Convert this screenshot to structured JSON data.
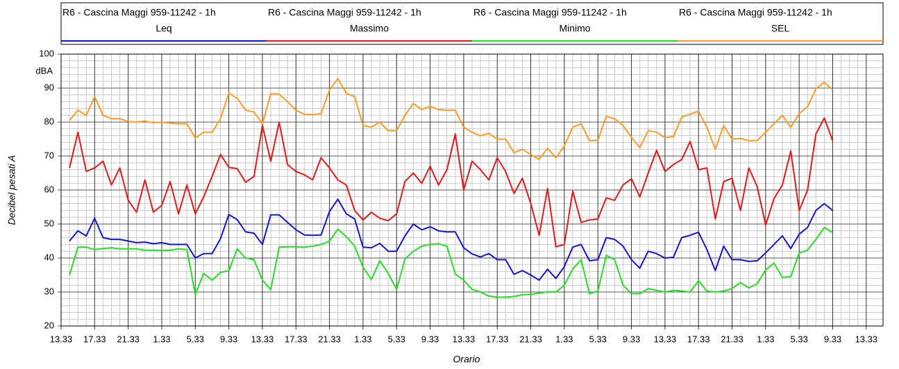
{
  "chart_data": {
    "type": "line",
    "x_label": "Orario",
    "y_label": "Decibel pesati A",
    "y_unit": "dBA",
    "xlim": [
      0,
      98
    ],
    "ylim": [
      20,
      100
    ],
    "yticks": [
      20,
      30,
      40,
      50,
      60,
      70,
      80,
      90,
      100
    ],
    "xticks": [
      {
        "value": 0,
        "label": "13.33"
      },
      {
        "value": 4,
        "label": "17.33"
      },
      {
        "value": 8,
        "label": "21.33"
      },
      {
        "value": 12,
        "label": "1.33"
      },
      {
        "value": 16,
        "label": "5.33"
      },
      {
        "value": 20,
        "label": "9.33"
      },
      {
        "value": 24,
        "label": "13.33"
      },
      {
        "value": 28,
        "label": "17.33"
      },
      {
        "value": 32,
        "label": "21.33"
      },
      {
        "value": 36,
        "label": "1.33"
      },
      {
        "value": 40,
        "label": "5.33"
      },
      {
        "value": 44,
        "label": "9.33"
      },
      {
        "value": 48,
        "label": "13.33"
      },
      {
        "value": 52,
        "label": "17.33"
      },
      {
        "value": 56,
        "label": "21.33"
      },
      {
        "value": 60,
        "label": "1.33"
      },
      {
        "value": 64,
        "label": "5.33"
      },
      {
        "value": 68,
        "label": "9.33"
      },
      {
        "value": 72,
        "label": "13.33"
      },
      {
        "value": 76,
        "label": "17.33"
      },
      {
        "value": 80,
        "label": "21.33"
      },
      {
        "value": 84,
        "label": "1.33"
      },
      {
        "value": 88,
        "label": "5.33"
      },
      {
        "value": 92,
        "label": "9.33"
      },
      {
        "value": 96,
        "label": "13.33"
      }
    ],
    "grid": true,
    "minor_grid": true,
    "legend": "top",
    "x": [
      1,
      2,
      3,
      4,
      5,
      6,
      7,
      8,
      9,
      10,
      11,
      12,
      13,
      14,
      15,
      16,
      17,
      18,
      19,
      20,
      21,
      22,
      23,
      24,
      25,
      26,
      27,
      28,
      29,
      30,
      31,
      32,
      33,
      34,
      35,
      36,
      37,
      38,
      39,
      40,
      41,
      42,
      43,
      44,
      45,
      46,
      47,
      48,
      49,
      50,
      51,
      52,
      53,
      54,
      55,
      56,
      57,
      58,
      59,
      60,
      61,
      62,
      63,
      64,
      65,
      66,
      67,
      68,
      69,
      70,
      71,
      72,
      73,
      74,
      75,
      76,
      77,
      78,
      79,
      80,
      81,
      82,
      83,
      84,
      85,
      86,
      87,
      88,
      89,
      90,
      91,
      92
    ],
    "series": [
      {
        "name": "R6 - Cascina Maggi 959-11242 - 1h",
        "measure": "Leq",
        "color": "#1414d8",
        "values": [
          45,
          48,
          46.5,
          51.7,
          46,
          45.5,
          45.5,
          45,
          44.5,
          44.7,
          44.2,
          44.5,
          44,
          44,
          44,
          40,
          41.3,
          41.3,
          45.7,
          52.8,
          51.3,
          47.7,
          47.3,
          44,
          52.7,
          52.7,
          50.5,
          48.3,
          46.8,
          46.7,
          46.8,
          53.7,
          57.3,
          53,
          51.5,
          43.2,
          43,
          44.3,
          42,
          42,
          46.5,
          50,
          48.3,
          49.2,
          48,
          47.7,
          47.7,
          43,
          41.2,
          40.3,
          41.3,
          39.5,
          39.5,
          35.2,
          36.3,
          35,
          33.5,
          36.7,
          34,
          37.5,
          43.2,
          44,
          39.2,
          39.5,
          46,
          45.5,
          43.5,
          39.5,
          37,
          42,
          41.3,
          40,
          40.2,
          46,
          46.7,
          47.6,
          42.5,
          36.3,
          43.5,
          39.5,
          39.5,
          39,
          39.2,
          41.5,
          44,
          46.5,
          42.8,
          47,
          49,
          54,
          56,
          54
        ]
      },
      {
        "name": "R6 - Cascina Maggi 959-11242 - 1h",
        "measure": "Massimo",
        "color": "#e81818",
        "values": [
          66.5,
          77,
          65.5,
          66.5,
          68.5,
          61.5,
          66.5,
          57,
          53.5,
          63,
          53.5,
          55.5,
          62.5,
          53,
          61.5,
          53,
          58,
          64,
          70.5,
          66.7,
          66.3,
          62.3,
          64,
          79,
          68.5,
          80,
          67.5,
          65.5,
          64.5,
          63,
          69.5,
          66.5,
          63,
          61.5,
          54,
          51.2,
          53.5,
          51.7,
          51,
          53,
          62.5,
          65,
          62,
          67,
          61.5,
          66,
          76.5,
          60,
          68.5,
          66,
          63,
          69.5,
          65.5,
          59,
          63.5,
          56,
          46.7,
          60.5,
          43.3,
          44,
          59.7,
          50.5,
          51.2,
          51.5,
          57.7,
          57,
          61.5,
          63.3,
          58,
          65,
          71.7,
          65.5,
          67.5,
          69,
          74.3,
          66,
          66.5,
          51.5,
          62.5,
          63.5,
          54,
          66.5,
          61,
          49.7,
          57.5,
          61.5,
          71.5,
          54,
          60,
          76.5,
          81.2,
          74.5
        ]
      },
      {
        "name": "R6 - Cascina Maggi 959-11242 - 1h",
        "measure": "Minimo",
        "color": "#22e022",
        "values": [
          35,
          43.2,
          43.2,
          42.5,
          42.8,
          43,
          42.7,
          42.7,
          42.7,
          42.3,
          42.3,
          42.2,
          42.3,
          42.7,
          42.5,
          29.3,
          35.5,
          33.5,
          35.8,
          36.3,
          42.7,
          40,
          39.5,
          33.5,
          30.7,
          43.2,
          43.3,
          43.3,
          43.2,
          43.5,
          44,
          45,
          48.5,
          46.3,
          43.5,
          37.3,
          33.7,
          39.2,
          35.5,
          30.8,
          39.7,
          42,
          43.5,
          44,
          44.2,
          43.5,
          35.3,
          33.5,
          30.8,
          30,
          28.8,
          28.5,
          28.5,
          28.7,
          29.2,
          29.3,
          29.7,
          30,
          30,
          32,
          36.8,
          39.5,
          29.5,
          30.3,
          40.8,
          39.5,
          32,
          29.5,
          29.5,
          31,
          30.5,
          30,
          30.5,
          30.3,
          30,
          33.3,
          30.3,
          30,
          30.3,
          31,
          32.8,
          31.2,
          32.5,
          36.5,
          38.5,
          34.3,
          34.5,
          41.5,
          42.3,
          45.5,
          49,
          47.5
        ]
      },
      {
        "name": "R6 - Cascina Maggi 959-11242 - 1h",
        "measure": "SEL",
        "color": "#ff9a22",
        "values": [
          80.5,
          83.5,
          82,
          87.5,
          82,
          81,
          81,
          80.2,
          80,
          80.3,
          79.8,
          80,
          79.7,
          79.5,
          79.5,
          75.3,
          77,
          77,
          81,
          88.5,
          87,
          83.5,
          83,
          79.5,
          88.3,
          88.2,
          86,
          83.5,
          82.3,
          82.2,
          82.5,
          89.5,
          92.8,
          88.5,
          87.5,
          79,
          78.5,
          80,
          77.5,
          77.5,
          82,
          85.5,
          83.7,
          84.7,
          83.7,
          83.5,
          83.5,
          78.5,
          77,
          76,
          76.7,
          75,
          75,
          71,
          72,
          70.5,
          69,
          72.3,
          69.5,
          73,
          78.5,
          79.5,
          74.5,
          74.7,
          81.7,
          81,
          79,
          75.5,
          72.5,
          77.5,
          77,
          75.5,
          75.7,
          81.5,
          82.3,
          83.2,
          78.5,
          72,
          79,
          75,
          75.2,
          74.5,
          74.6,
          77,
          79.5,
          82,
          78.5,
          82.5,
          84.5,
          89.8,
          91.7,
          89.5
        ]
      }
    ]
  }
}
